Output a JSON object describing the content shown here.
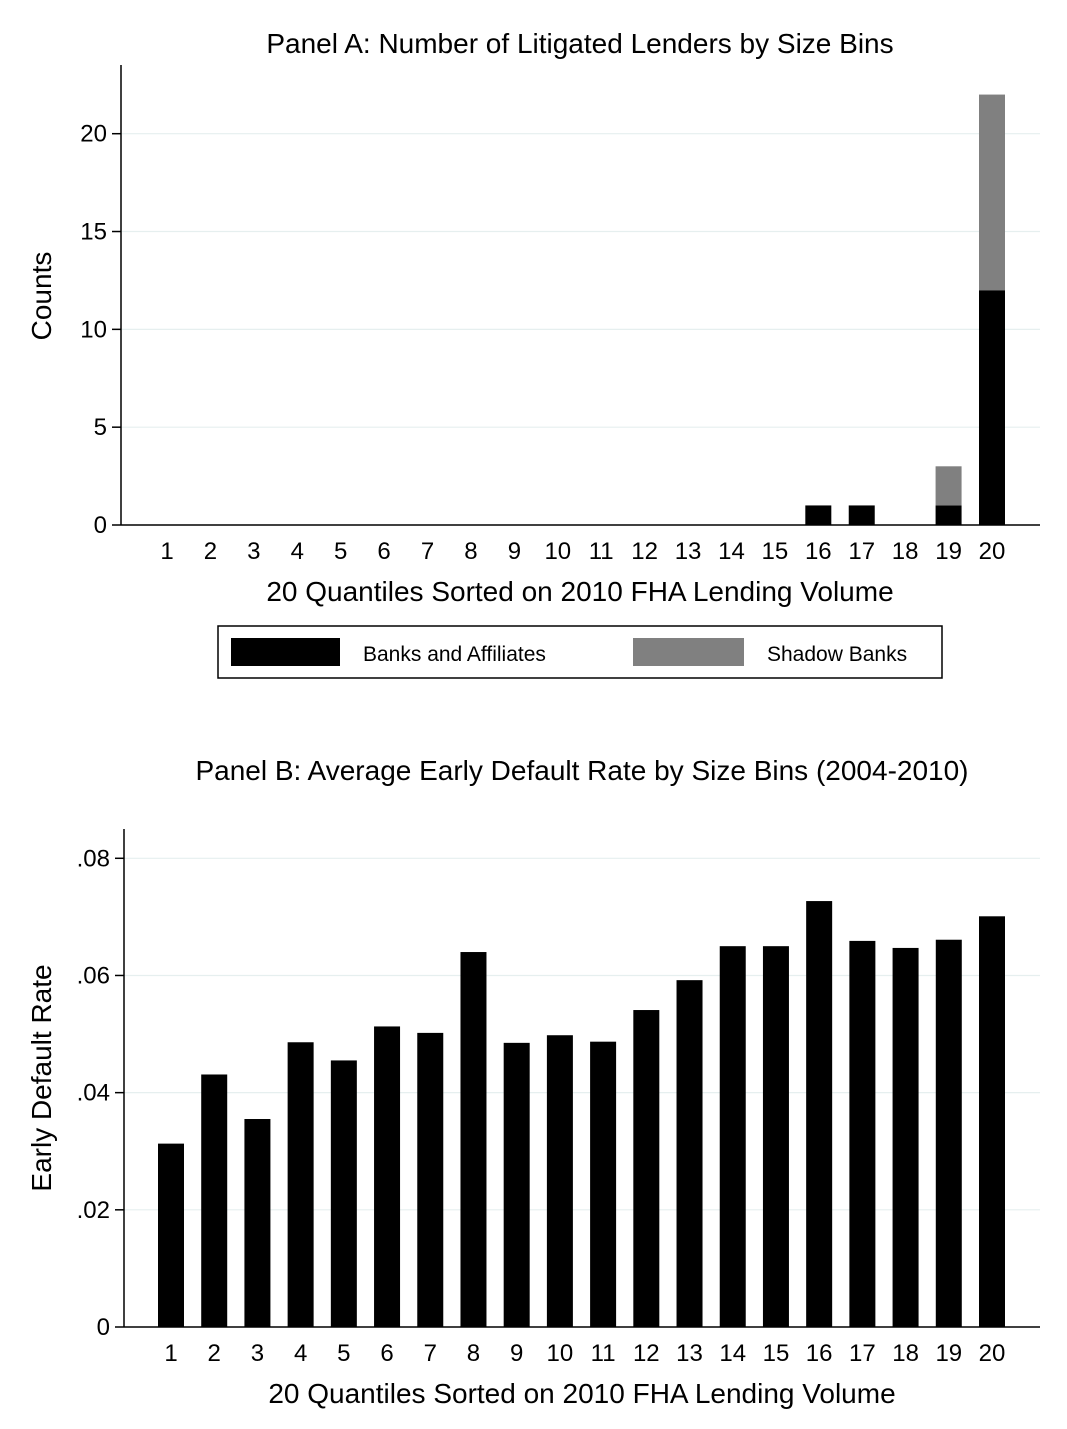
{
  "chart_data": [
    {
      "type": "bar",
      "stacked": true,
      "title": "Panel A: Number of Litigated Lenders by Size Bins",
      "xlabel": "20 Quantiles Sorted on 2010 FHA Lending Volume",
      "ylabel": "Counts",
      "ylim": [
        0,
        23
      ],
      "yticks": [
        0,
        5,
        10,
        15,
        20
      ],
      "ytick_labels": [
        "0",
        "5",
        "10",
        "15",
        "20"
      ],
      "grid": true,
      "legend": "bottom",
      "categories": [
        "1",
        "2",
        "3",
        "4",
        "5",
        "6",
        "7",
        "8",
        "9",
        "10",
        "11",
        "12",
        "13",
        "14",
        "15",
        "16",
        "17",
        "18",
        "19",
        "20"
      ],
      "series": [
        {
          "name": "Banks and Affiliates",
          "color": "#000000",
          "values": [
            0,
            0,
            0,
            0,
            0,
            0,
            0,
            0,
            0,
            0,
            0,
            0,
            0,
            0,
            0,
            1,
            1,
            0,
            1,
            12
          ]
        },
        {
          "name": "Shadow Banks",
          "color": "#808080",
          "values": [
            0,
            0,
            0,
            0,
            0,
            0,
            0,
            0,
            0,
            0,
            0,
            0,
            0,
            0,
            0,
            0,
            0,
            0,
            2,
            10
          ]
        }
      ]
    },
    {
      "type": "bar",
      "title": "Panel B: Average Early Default Rate by Size Bins (2004-2010)",
      "xlabel": "20 Quantiles Sorted on 2010 FHA Lending Volume",
      "ylabel": "Early Default Rate",
      "ylim": [
        0,
        0.085
      ],
      "yticks": [
        0,
        0.02,
        0.04,
        0.06,
        0.08
      ],
      "ytick_labels": [
        "0",
        ".02",
        ".04",
        ".06",
        ".08"
      ],
      "grid": true,
      "categories": [
        "1",
        "2",
        "3",
        "4",
        "5",
        "6",
        "7",
        "8",
        "9",
        "10",
        "11",
        "12",
        "13",
        "14",
        "15",
        "16",
        "17",
        "18",
        "19",
        "20"
      ],
      "bar_color": "#000000",
      "values": [
        0.0313,
        0.0431,
        0.0355,
        0.0486,
        0.0455,
        0.0513,
        0.0502,
        0.064,
        0.0485,
        0.0498,
        0.0487,
        0.0541,
        0.0592,
        0.065,
        0.065,
        0.0727,
        0.0659,
        0.0647,
        0.0661,
        0.0701
      ]
    }
  ]
}
